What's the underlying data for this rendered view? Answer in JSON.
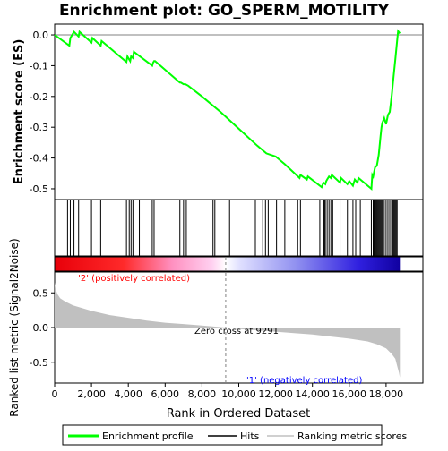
{
  "chart_data": [
    {
      "type": "line",
      "title": "Enrichment plot: GO_SPERM_MOTILITY",
      "ylabel": "Enrichment score (ES)",
      "ylim": [
        -0.535,
        0.035
      ],
      "yticks": [
        0.0,
        -0.1,
        -0.2,
        -0.3,
        -0.4,
        -0.5
      ],
      "ytick_labels": [
        "0.0",
        "-0.1",
        "-0.2",
        "-0.3",
        "-0.4",
        "-0.5"
      ],
      "series": [
        {
          "name": "Enrichment profile",
          "color": "#00ff00",
          "x": [
            0,
            800,
            850,
            1050,
            1300,
            1350,
            2000,
            2050,
            2500,
            2550,
            3900,
            3950,
            4100,
            4150,
            4250,
            4300,
            5300,
            5350,
            5400,
            5450,
            6800,
            6850,
            7000,
            7100,
            7250,
            8000,
            9000,
            10000,
            11000,
            11500,
            12000,
            12500,
            13300,
            13350,
            13700,
            13750,
            14500,
            14600,
            14700,
            14750,
            14800,
            14900,
            15000,
            15050,
            15500,
            15550,
            15900,
            16000,
            16200,
            16300,
            16450,
            16500,
            17200,
            17250,
            17300,
            17400,
            17500,
            17600,
            17700,
            17750,
            17800,
            17900,
            18000,
            18100,
            18200,
            18300,
            18400,
            18500,
            18550,
            18600,
            18650,
            18750
          ],
          "y": [
            0.0,
            -0.035,
            -0.01,
            0.01,
            -0.005,
            0.01,
            -0.025,
            -0.01,
            -0.035,
            -0.02,
            -0.088,
            -0.07,
            -0.085,
            -0.07,
            -0.075,
            -0.055,
            -0.1,
            -0.09,
            -0.085,
            -0.085,
            -0.155,
            -0.155,
            -0.16,
            -0.16,
            -0.165,
            -0.2,
            -0.25,
            -0.305,
            -0.36,
            -0.385,
            -0.395,
            -0.42,
            -0.465,
            -0.455,
            -0.47,
            -0.46,
            -0.495,
            -0.48,
            -0.485,
            -0.475,
            -0.47,
            -0.46,
            -0.465,
            -0.455,
            -0.48,
            -0.465,
            -0.485,
            -0.475,
            -0.49,
            -0.47,
            -0.48,
            -0.465,
            -0.5,
            -0.455,
            -0.46,
            -0.43,
            -0.425,
            -0.39,
            -0.33,
            -0.3,
            -0.285,
            -0.27,
            -0.29,
            -0.26,
            -0.25,
            -0.2,
            -0.14,
            -0.08,
            -0.05,
            -0.02,
            0.012,
            0.005
          ]
        }
      ]
    },
    {
      "type": "hits",
      "series_name": "Hits",
      "hit_positions": [
        700,
        850,
        1050,
        1300,
        2000,
        2500,
        3900,
        4050,
        4150,
        4250,
        4600,
        5300,
        5400,
        6800,
        7000,
        7150,
        8600,
        8700,
        9500,
        10900,
        11300,
        11450,
        11600,
        12050,
        12500,
        13200,
        13350,
        13650,
        14400,
        14600,
        14650,
        14700,
        14800,
        14900,
        15000,
        15100,
        15500,
        15900,
        16200,
        16350,
        16600,
        17200,
        17300,
        17350,
        17450,
        17500,
        17550,
        17600,
        17650,
        17700,
        17750,
        17800,
        17900,
        18000,
        18100,
        18200,
        18300,
        18350,
        18400,
        18450,
        18500,
        18550,
        18600
      ]
    },
    {
      "type": "area",
      "ylabel": "Ranked list metric (Signal2Noise)",
      "xlabel": "Rank in Ordered Dataset",
      "xlim": [
        0,
        20000
      ],
      "ylim": [
        -0.8,
        0.8
      ],
      "xticks": [
        0,
        2000,
        4000,
        6000,
        8000,
        10000,
        12000,
        14000,
        16000,
        18000
      ],
      "xtick_labels": [
        "0",
        "2,000",
        "4,000",
        "6,000",
        "8,000",
        "10,000",
        "12,000",
        "14,000",
        "16,000",
        "18,000"
      ],
      "yticks": [
        0.5,
        0.0,
        -0.5
      ],
      "ytick_labels": [
        "0.5",
        "0.0",
        "-0.5"
      ],
      "series": [
        {
          "name": "Ranking metric scores",
          "color": "#c0c0c0",
          "x": [
            0,
            50,
            150,
            300,
            600,
            1000,
            2000,
            3000,
            4000,
            5000,
            6000,
            7000,
            8000,
            9291,
            10000,
            11000,
            12000,
            13000,
            14000,
            15000,
            16000,
            17000,
            17500,
            18000,
            18300,
            18500,
            18600,
            18700,
            18750
          ],
          "y": [
            0.65,
            0.56,
            0.48,
            0.42,
            0.37,
            0.32,
            0.24,
            0.18,
            0.14,
            0.1,
            0.07,
            0.05,
            0.03,
            0.0,
            -0.02,
            -0.04,
            -0.06,
            -0.08,
            -0.1,
            -0.13,
            -0.16,
            -0.2,
            -0.24,
            -0.3,
            -0.38,
            -0.45,
            -0.55,
            -0.65,
            -0.72
          ]
        }
      ],
      "annotations": {
        "zero_cross": "Zero cross at 9291",
        "zero_cross_rank": 9291,
        "positive_label": "'2' (positively correlated)",
        "negative_label": "'1' (negatively correlated)"
      }
    }
  ],
  "total_ranks": 18750,
  "legend": [
    {
      "label": "Enrichment profile",
      "color": "#00ff00"
    },
    {
      "label": "Hits",
      "color": "#000000"
    },
    {
      "label": "Ranking metric scores",
      "color": "#c0c0c0"
    }
  ],
  "colors": {
    "profile": "#00ff00",
    "positive_label": "#ff0000",
    "negative_label": "#0000ff",
    "metric_fill": "#c0c0c0",
    "axis": "#000000",
    "grid": "#808080"
  }
}
